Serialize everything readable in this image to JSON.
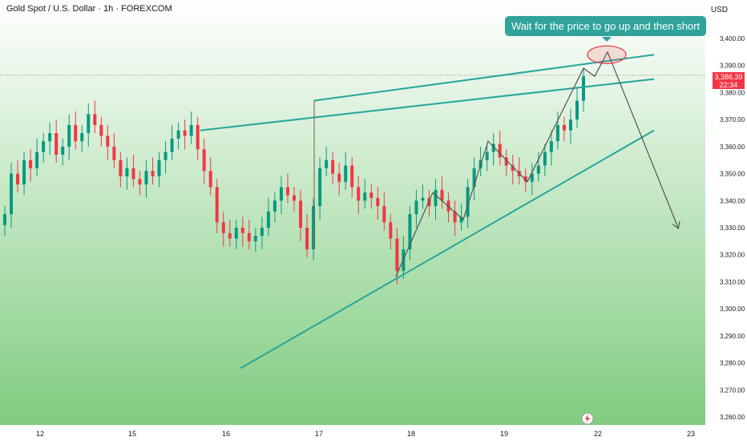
{
  "header": {
    "symbol_title": "Gold Spot / U.S. Dollar · 1h · FOREXCOM",
    "currency": "USD"
  },
  "annotation": {
    "callout_text": "Wait for the price to go up and then short"
  },
  "price_marker": {
    "price": "3,386.39",
    "countdown": "22:34"
  },
  "colors": {
    "up": "#089981",
    "down": "#f23645",
    "trendline": "#26a69a",
    "path": "#555555",
    "callout": "#2fa39a",
    "ellipse": "#f23645",
    "bg_top": "#ffffff",
    "bg_bottom": "#80cc80"
  },
  "icons": {
    "bottom_marker": "lightning-icon"
  },
  "chart_data": {
    "type": "candlestick",
    "instrument": "Gold Spot / U.S. Dollar",
    "timeframe": "1h",
    "ylim": [
      3255,
      3405
    ],
    "y_ticks": [
      "3,260.00",
      "3,270.00",
      "3,280.00",
      "3,290.00",
      "3,300.00",
      "3,310.00",
      "3,320.00",
      "3,330.00",
      "3,340.00",
      "3,350.00",
      "3,360.00",
      "3,370.00",
      "3,380.00",
      "3,390.00",
      "3,400.00"
    ],
    "x_ticks": [
      "12",
      "15",
      "16",
      "17",
      "18",
      "19",
      "22",
      "23"
    ],
    "last_price": 3386.39,
    "candle_closes": [
      3335,
      3350,
      3346,
      3355,
      3352,
      3358,
      3362,
      3365,
      3357,
      3360,
      3368,
      3362,
      3365,
      3372,
      3368,
      3364,
      3360,
      3355,
      3349,
      3352,
      3348,
      3346,
      3351,
      3349,
      3355,
      3358,
      3363,
      3366,
      3364,
      3368,
      3359,
      3351,
      3345,
      3332,
      3328,
      3326,
      3330,
      3328,
      3325,
      3327,
      3330,
      3336,
      3340,
      3345,
      3342,
      3340,
      3330,
      3322,
      3338,
      3352,
      3355,
      3350,
      3347,
      3353,
      3345,
      3340,
      3343,
      3341,
      3338,
      3332,
      3326,
      3314,
      3322,
      3335,
      3340,
      3341,
      3338,
      3344,
      3340,
      3336,
      3332,
      3334,
      3345,
      3352,
      3355,
      3358,
      3361,
      3356,
      3353,
      3351,
      3349,
      3347,
      3350,
      3353,
      3358,
      3362,
      3368,
      3366,
      3370,
      3377,
      3386
    ],
    "projection_path": [
      {
        "x_label": "18 (early)",
        "y": 3312
      },
      {
        "x_label": "18 (mid)",
        "y": 3343
      },
      {
        "x_label": "18 (late)",
        "y": 3333
      },
      {
        "x_label": "19 (early)",
        "y": 3362
      },
      {
        "x_label": "19 (late)",
        "y": 3347
      },
      {
        "x_label": "22 (early)",
        "y": 3389
      },
      {
        "x_label": "22",
        "y": 3386
      },
      {
        "x_label": "22 (peak)",
        "y": 3395
      },
      {
        "x_label": "23",
        "y": 3330
      }
    ],
    "trendlines": [
      {
        "from": {
          "x_label": "15 (late)",
          "y": 3366
        },
        "to": {
          "x_label": "22 (late)",
          "y": 3385
        }
      },
      {
        "from": {
          "x_label": "17",
          "y": 3377
        },
        "to": {
          "x_label": "22 (late)",
          "y": 3394
        }
      },
      {
        "from": {
          "x_label": "16 (early)",
          "y": 3278
        },
        "to": {
          "x_label": "22 (late)",
          "y": 3366
        }
      }
    ],
    "grid": false
  }
}
